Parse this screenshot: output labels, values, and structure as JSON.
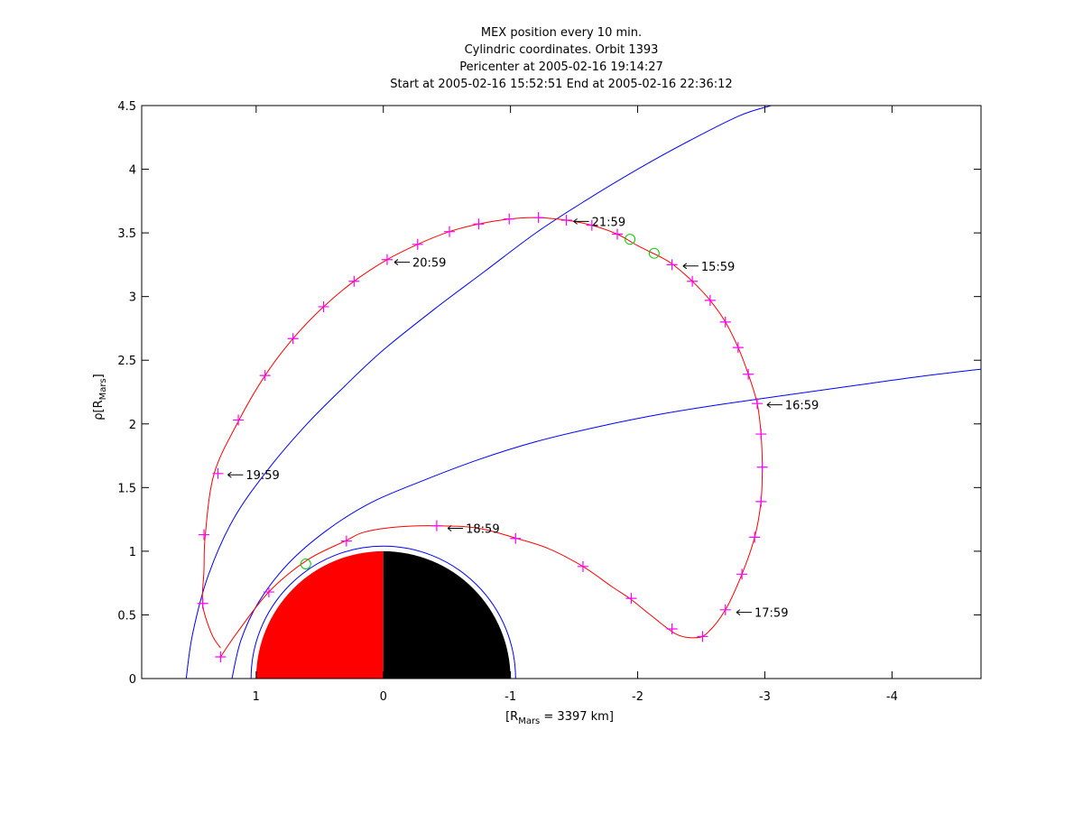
{
  "chart_data": {
    "type": "line",
    "title": [
      "MEX position every 10 min.",
      "Cylindric coordinates. Orbit 1393",
      "Pericenter at 2005-02-16 19:14:27",
      "Start at 2005-02-16 15:52:51 End at 2005-02-16 22:36:12"
    ],
    "xlabel": {
      "prefix": "[R",
      "sub": "Mars",
      "suffix": " = 3397 km]"
    },
    "ylabel": {
      "prefix": "ρ[R",
      "sub": "Mars",
      "suffix": "]"
    },
    "xlim": [
      1.9,
      -4.7
    ],
    "ylim": [
      0,
      4.5
    ],
    "grid": false,
    "xticks": [
      {
        "value": 1,
        "label": "1"
      },
      {
        "value": 0,
        "label": "0"
      },
      {
        "value": -1,
        "label": "-1"
      },
      {
        "value": -2,
        "label": "-2"
      },
      {
        "value": -3,
        "label": "-3"
      },
      {
        "value": -4,
        "label": "-4"
      }
    ],
    "yticks": [
      {
        "value": 0,
        "label": "0"
      },
      {
        "value": 0.5,
        "label": "0.5"
      },
      {
        "value": 1,
        "label": "1"
      },
      {
        "value": 1.5,
        "label": "1.5"
      },
      {
        "value": 2,
        "label": "2"
      },
      {
        "value": 2.5,
        "label": "2.5"
      },
      {
        "value": 3,
        "label": "3"
      },
      {
        "value": 3.5,
        "label": "3.5"
      },
      {
        "value": 4,
        "label": "4"
      },
      {
        "value": 4.5,
        "label": "4.5"
      }
    ],
    "colors": {
      "orbit": "#ff0000",
      "marker": "#ff00ff",
      "boundary": "#0000ff",
      "events": "#00cc00",
      "dayside": "#ff0000",
      "nightside": "#000000"
    },
    "planet_radius": 1.0,
    "planet_ring_radius": 1.04,
    "boundaries": [
      {
        "name": "bow-shock",
        "points": [
          [
            1.55,
            0
          ],
          [
            1.5,
            0.35
          ],
          [
            1.38,
            0.8
          ],
          [
            1.18,
            1.25
          ],
          [
            0.9,
            1.65
          ],
          [
            0.6,
            2.0
          ],
          [
            0.3,
            2.3
          ],
          [
            0.0,
            2.58
          ],
          [
            -0.4,
            2.9
          ],
          [
            -0.8,
            3.2
          ],
          [
            -1.2,
            3.5
          ],
          [
            -1.6,
            3.76
          ],
          [
            -2.0,
            4.0
          ],
          [
            -2.4,
            4.22
          ],
          [
            -2.8,
            4.42
          ],
          [
            -3.05,
            4.5
          ]
        ]
      },
      {
        "name": "magnetic-pileup-boundary",
        "points": [
          [
            1.19,
            0
          ],
          [
            1.12,
            0.3
          ],
          [
            0.98,
            0.6
          ],
          [
            0.75,
            0.9
          ],
          [
            0.45,
            1.16
          ],
          [
            0.1,
            1.38
          ],
          [
            -0.3,
            1.55
          ],
          [
            -0.75,
            1.72
          ],
          [
            -1.2,
            1.86
          ],
          [
            -1.7,
            1.98
          ],
          [
            -2.2,
            2.08
          ],
          [
            -2.7,
            2.16
          ],
          [
            -3.2,
            2.23
          ],
          [
            -3.7,
            2.3
          ],
          [
            -4.2,
            2.37
          ],
          [
            -4.7,
            2.43
          ]
        ]
      }
    ],
    "orbit": [
      [
        1.28,
        0.24
      ],
      [
        1.35,
        0.35
      ],
      [
        1.42,
        0.58
      ],
      [
        1.41,
        0.85
      ],
      [
        1.4,
        1.13
      ],
      [
        1.33,
        1.61
      ],
      [
        1.14,
        2.02
      ],
      [
        0.93,
        2.38
      ],
      [
        0.71,
        2.67
      ],
      [
        0.47,
        2.92
      ],
      [
        0.23,
        3.12
      ],
      [
        -0.03,
        3.29
      ],
      [
        -0.27,
        3.41
      ],
      [
        -0.52,
        3.51
      ],
      [
        -0.75,
        3.57
      ],
      [
        -1.0,
        3.61
      ],
      [
        -1.22,
        3.62
      ],
      [
        -1.44,
        3.6
      ],
      [
        -1.64,
        3.56
      ],
      [
        -1.84,
        3.49
      ],
      [
        -2.0,
        3.4
      ],
      [
        -2.2,
        3.3
      ],
      [
        -2.28,
        3.25
      ],
      [
        -2.43,
        3.12
      ],
      [
        -2.57,
        2.97
      ],
      [
        -2.69,
        2.8
      ],
      [
        -2.79,
        2.6
      ],
      [
        -2.87,
        2.39
      ],
      [
        -2.94,
        2.16
      ],
      [
        -2.97,
        1.92
      ],
      [
        -2.98,
        1.66
      ],
      [
        -2.97,
        1.39
      ],
      [
        -2.92,
        1.11
      ],
      [
        -2.82,
        0.82
      ],
      [
        -2.69,
        0.54
      ],
      [
        -2.55,
        0.36
      ],
      [
        -2.45,
        0.32
      ],
      [
        -2.3,
        0.35
      ],
      [
        -2.1,
        0.5
      ],
      [
        -1.95,
        0.62
      ],
      [
        -1.8,
        0.72
      ],
      [
        -1.57,
        0.88
      ],
      [
        -1.3,
        1.02
      ],
      [
        -1.05,
        1.1
      ],
      [
        -0.75,
        1.18
      ],
      [
        -0.42,
        1.2
      ],
      [
        -0.1,
        1.19
      ],
      [
        0.15,
        1.15
      ],
      [
        0.3,
        1.08
      ],
      [
        0.6,
        0.93
      ],
      [
        0.9,
        0.68
      ],
      [
        1.15,
        0.36
      ],
      [
        1.28,
        0.17
      ]
    ],
    "markers": [
      [
        1.28,
        0.17
      ],
      [
        1.42,
        0.59
      ],
      [
        1.41,
        1.13
      ],
      [
        1.3,
        1.61
      ],
      [
        1.14,
        2.03
      ],
      [
        0.93,
        2.38
      ],
      [
        0.71,
        2.67
      ],
      [
        0.47,
        2.92
      ],
      [
        0.23,
        3.12
      ],
      [
        -0.03,
        3.29
      ],
      [
        -0.27,
        3.41
      ],
      [
        -0.52,
        3.51
      ],
      [
        -0.75,
        3.57
      ],
      [
        -0.99,
        3.61
      ],
      [
        -1.22,
        3.62
      ],
      [
        -1.44,
        3.6
      ],
      [
        -1.64,
        3.56
      ],
      [
        -1.84,
        3.49
      ],
      [
        -2.27,
        3.25
      ],
      [
        -2.43,
        3.12
      ],
      [
        -2.57,
        2.97
      ],
      [
        -2.69,
        2.8
      ],
      [
        -2.79,
        2.6
      ],
      [
        -2.87,
        2.39
      ],
      [
        -2.94,
        2.16
      ],
      [
        -2.97,
        1.92
      ],
      [
        -2.98,
        1.66
      ],
      [
        -2.97,
        1.39
      ],
      [
        -2.92,
        1.11
      ],
      [
        -2.82,
        0.82
      ],
      [
        -2.69,
        0.54
      ],
      [
        -2.51,
        0.33
      ],
      [
        -2.27,
        0.39
      ],
      [
        -1.95,
        0.63
      ],
      [
        -1.57,
        0.88
      ],
      [
        -1.04,
        1.1
      ],
      [
        -0.42,
        1.2
      ],
      [
        0.29,
        1.08
      ],
      [
        0.9,
        0.68
      ]
    ],
    "event_circles": [
      [
        -1.94,
        3.45
      ],
      [
        -2.13,
        3.34
      ],
      [
        0.61,
        0.9
      ]
    ],
    "time_labels": [
      {
        "text": "21:59",
        "x": -1.44,
        "y": 3.59
      },
      {
        "text": "20:59",
        "x": -0.03,
        "y": 3.27
      },
      {
        "text": "15:59",
        "x": -2.3,
        "y": 3.24
      },
      {
        "text": "16:59",
        "x": -2.96,
        "y": 2.15
      },
      {
        "text": "19:59",
        "x": 1.28,
        "y": 1.6
      },
      {
        "text": "18:59",
        "x": -0.45,
        "y": 1.18
      },
      {
        "text": "17:59",
        "x": -2.72,
        "y": 0.52
      }
    ]
  }
}
